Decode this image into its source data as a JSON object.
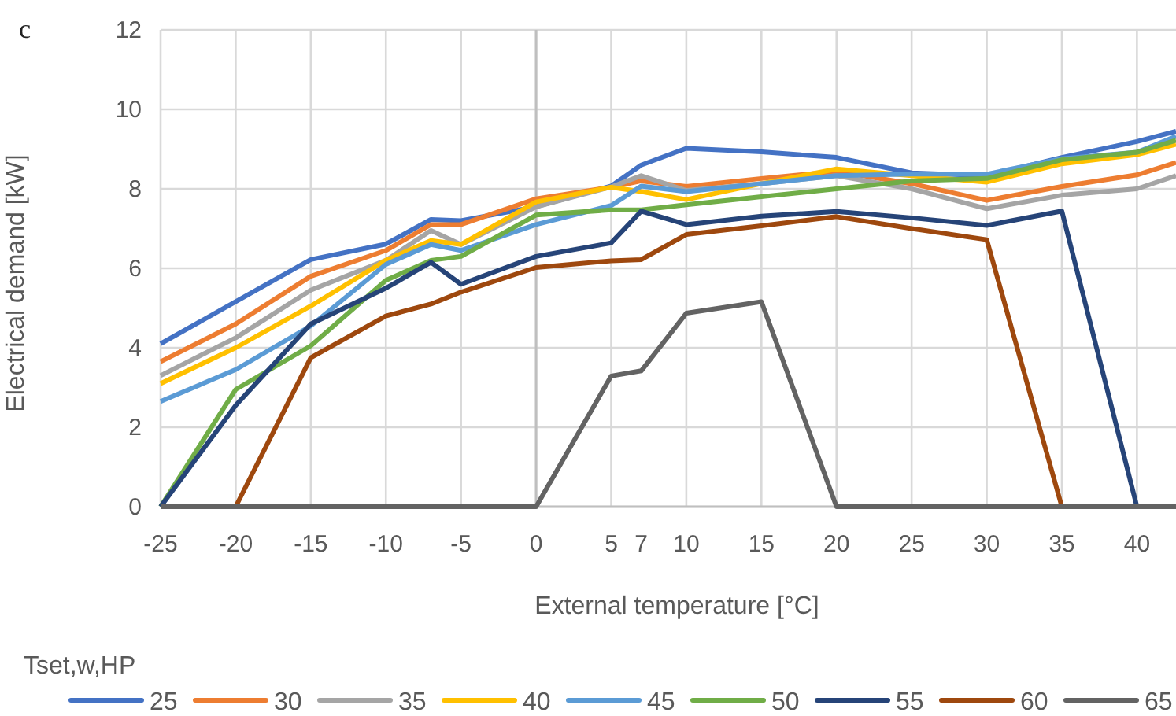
{
  "chart_data": {
    "type": "line",
    "xlabel": "External temperature [°C]",
    "ylabel": "Electrical demand [kW]",
    "legend_title": "Tset,w,HP",
    "annotations": [
      "c"
    ],
    "x": [
      -25,
      -20,
      -15,
      -10,
      -7,
      -5,
      0,
      5,
      7,
      10,
      15,
      20,
      25,
      30,
      35,
      40,
      42.6
    ],
    "xlim": [
      -25,
      42.6
    ],
    "xticks": [
      -25,
      -20,
      -15,
      -10,
      -5,
      0,
      5,
      7,
      10,
      15,
      20,
      25,
      30,
      35,
      40
    ],
    "ylim": [
      0,
      12
    ],
    "yticks": [
      0,
      2,
      4,
      6,
      8,
      10,
      12
    ],
    "grid": true,
    "legend": "bottom",
    "marker": "none",
    "line_style": "solid",
    "series": [
      {
        "name": "25",
        "color": "#4472c4",
        "values": [
          4.1,
          5.16,
          6.22,
          6.61,
          7.23,
          7.2,
          7.55,
          8.07,
          8.6,
          9.02,
          8.93,
          8.79,
          8.4,
          8.33,
          8.79,
          9.19,
          9.45
        ]
      },
      {
        "name": "30",
        "color": "#ed7d31",
        "values": [
          3.65,
          4.6,
          5.8,
          6.45,
          7.1,
          7.1,
          7.75,
          8.04,
          8.2,
          8.06,
          8.26,
          8.44,
          8.13,
          7.71,
          8.06,
          8.35,
          8.66
        ]
      },
      {
        "name": "35",
        "color": "#a5a5a5",
        "values": [
          3.3,
          4.25,
          5.45,
          6.2,
          6.95,
          6.6,
          7.55,
          8.05,
          8.33,
          7.96,
          8.13,
          8.33,
          8.0,
          7.5,
          7.84,
          8.0,
          8.33
        ]
      },
      {
        "name": "40",
        "color": "#ffc000",
        "values": [
          3.1,
          4.0,
          5.05,
          6.2,
          6.7,
          6.6,
          7.67,
          8.04,
          7.93,
          7.73,
          8.13,
          8.5,
          8.33,
          8.17,
          8.63,
          8.86,
          9.12
        ]
      },
      {
        "name": "45",
        "color": "#5b9bd5",
        "values": [
          2.65,
          3.45,
          4.55,
          6.1,
          6.6,
          6.45,
          7.1,
          7.58,
          8.07,
          7.93,
          8.13,
          8.33,
          8.37,
          8.37,
          8.76,
          8.92,
          9.32
        ]
      },
      {
        "name": "50",
        "color": "#70ad47",
        "values": [
          0,
          2.95,
          4.05,
          5.7,
          6.2,
          6.3,
          7.34,
          7.47,
          7.47,
          7.6,
          7.8,
          8.0,
          8.2,
          8.26,
          8.73,
          8.92,
          9.22
        ]
      },
      {
        "name": "55",
        "color": "#264478",
        "values": [
          0,
          2.55,
          4.6,
          5.5,
          6.15,
          5.6,
          6.3,
          6.64,
          7.44,
          7.1,
          7.31,
          7.43,
          7.27,
          7.08,
          7.44,
          0,
          0
        ]
      },
      {
        "name": "60",
        "color": "#9e480e",
        "values": [
          0,
          0,
          3.75,
          4.8,
          5.1,
          5.4,
          6.02,
          6.19,
          6.22,
          6.85,
          7.07,
          7.3,
          7.0,
          6.72,
          0,
          0,
          0
        ]
      },
      {
        "name": "65",
        "color": "#636363",
        "values": [
          0,
          0,
          0,
          0,
          0,
          0,
          0,
          3.29,
          3.42,
          4.87,
          5.16,
          0,
          0,
          0,
          0,
          0,
          0
        ]
      }
    ]
  }
}
